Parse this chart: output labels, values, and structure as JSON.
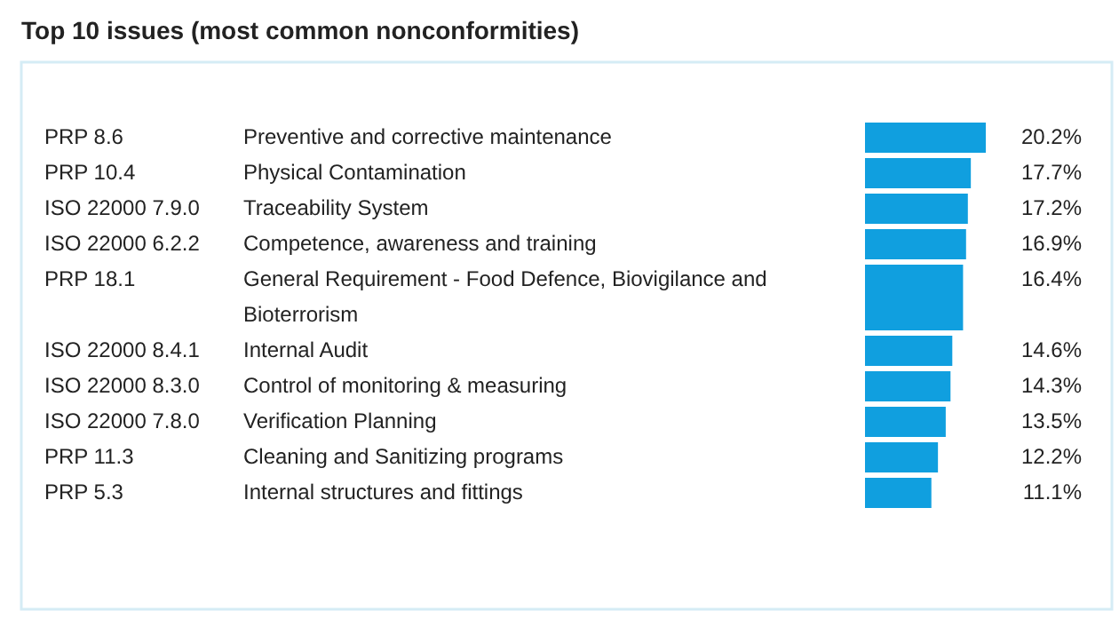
{
  "chart_data": {
    "type": "bar",
    "orientation": "horizontal",
    "title": "Top 10 issues (most common nonconformities)",
    "categories": [
      "PRP 8.6",
      "PRP 10.4",
      "ISO 22000 7.9.0",
      "ISO 22000 6.2.2",
      "PRP 18.1",
      "ISO 22000 8.4.1",
      "ISO 22000 8.3.0",
      "ISO 22000 7.8.0",
      "PRP 11.3",
      "PRP 5.3"
    ],
    "values": [
      20.2,
      17.7,
      17.2,
      16.9,
      16.4,
      14.6,
      14.3,
      13.5,
      12.2,
      11.1
    ],
    "value_labels": [
      "20.2%",
      "17.7%",
      "17.2%",
      "16.9%",
      "16.4%",
      "14.6%",
      "14.3%",
      "13.5%",
      "12.2%",
      "11.1%"
    ],
    "color": "#109fdf",
    "annotations": [
      "Preventive and corrective maintenance",
      "Physical Contamination",
      "Traceability System",
      "Competence, awareness and training",
      "General Requirement - Food Defence, Biovigilance and Bioterrorism",
      "Internal Audit",
      "Control of monitoring & measuring",
      "Verification Planning",
      "Cleaning and Sanitizing programs",
      "Internal structures and fittings"
    ]
  }
}
